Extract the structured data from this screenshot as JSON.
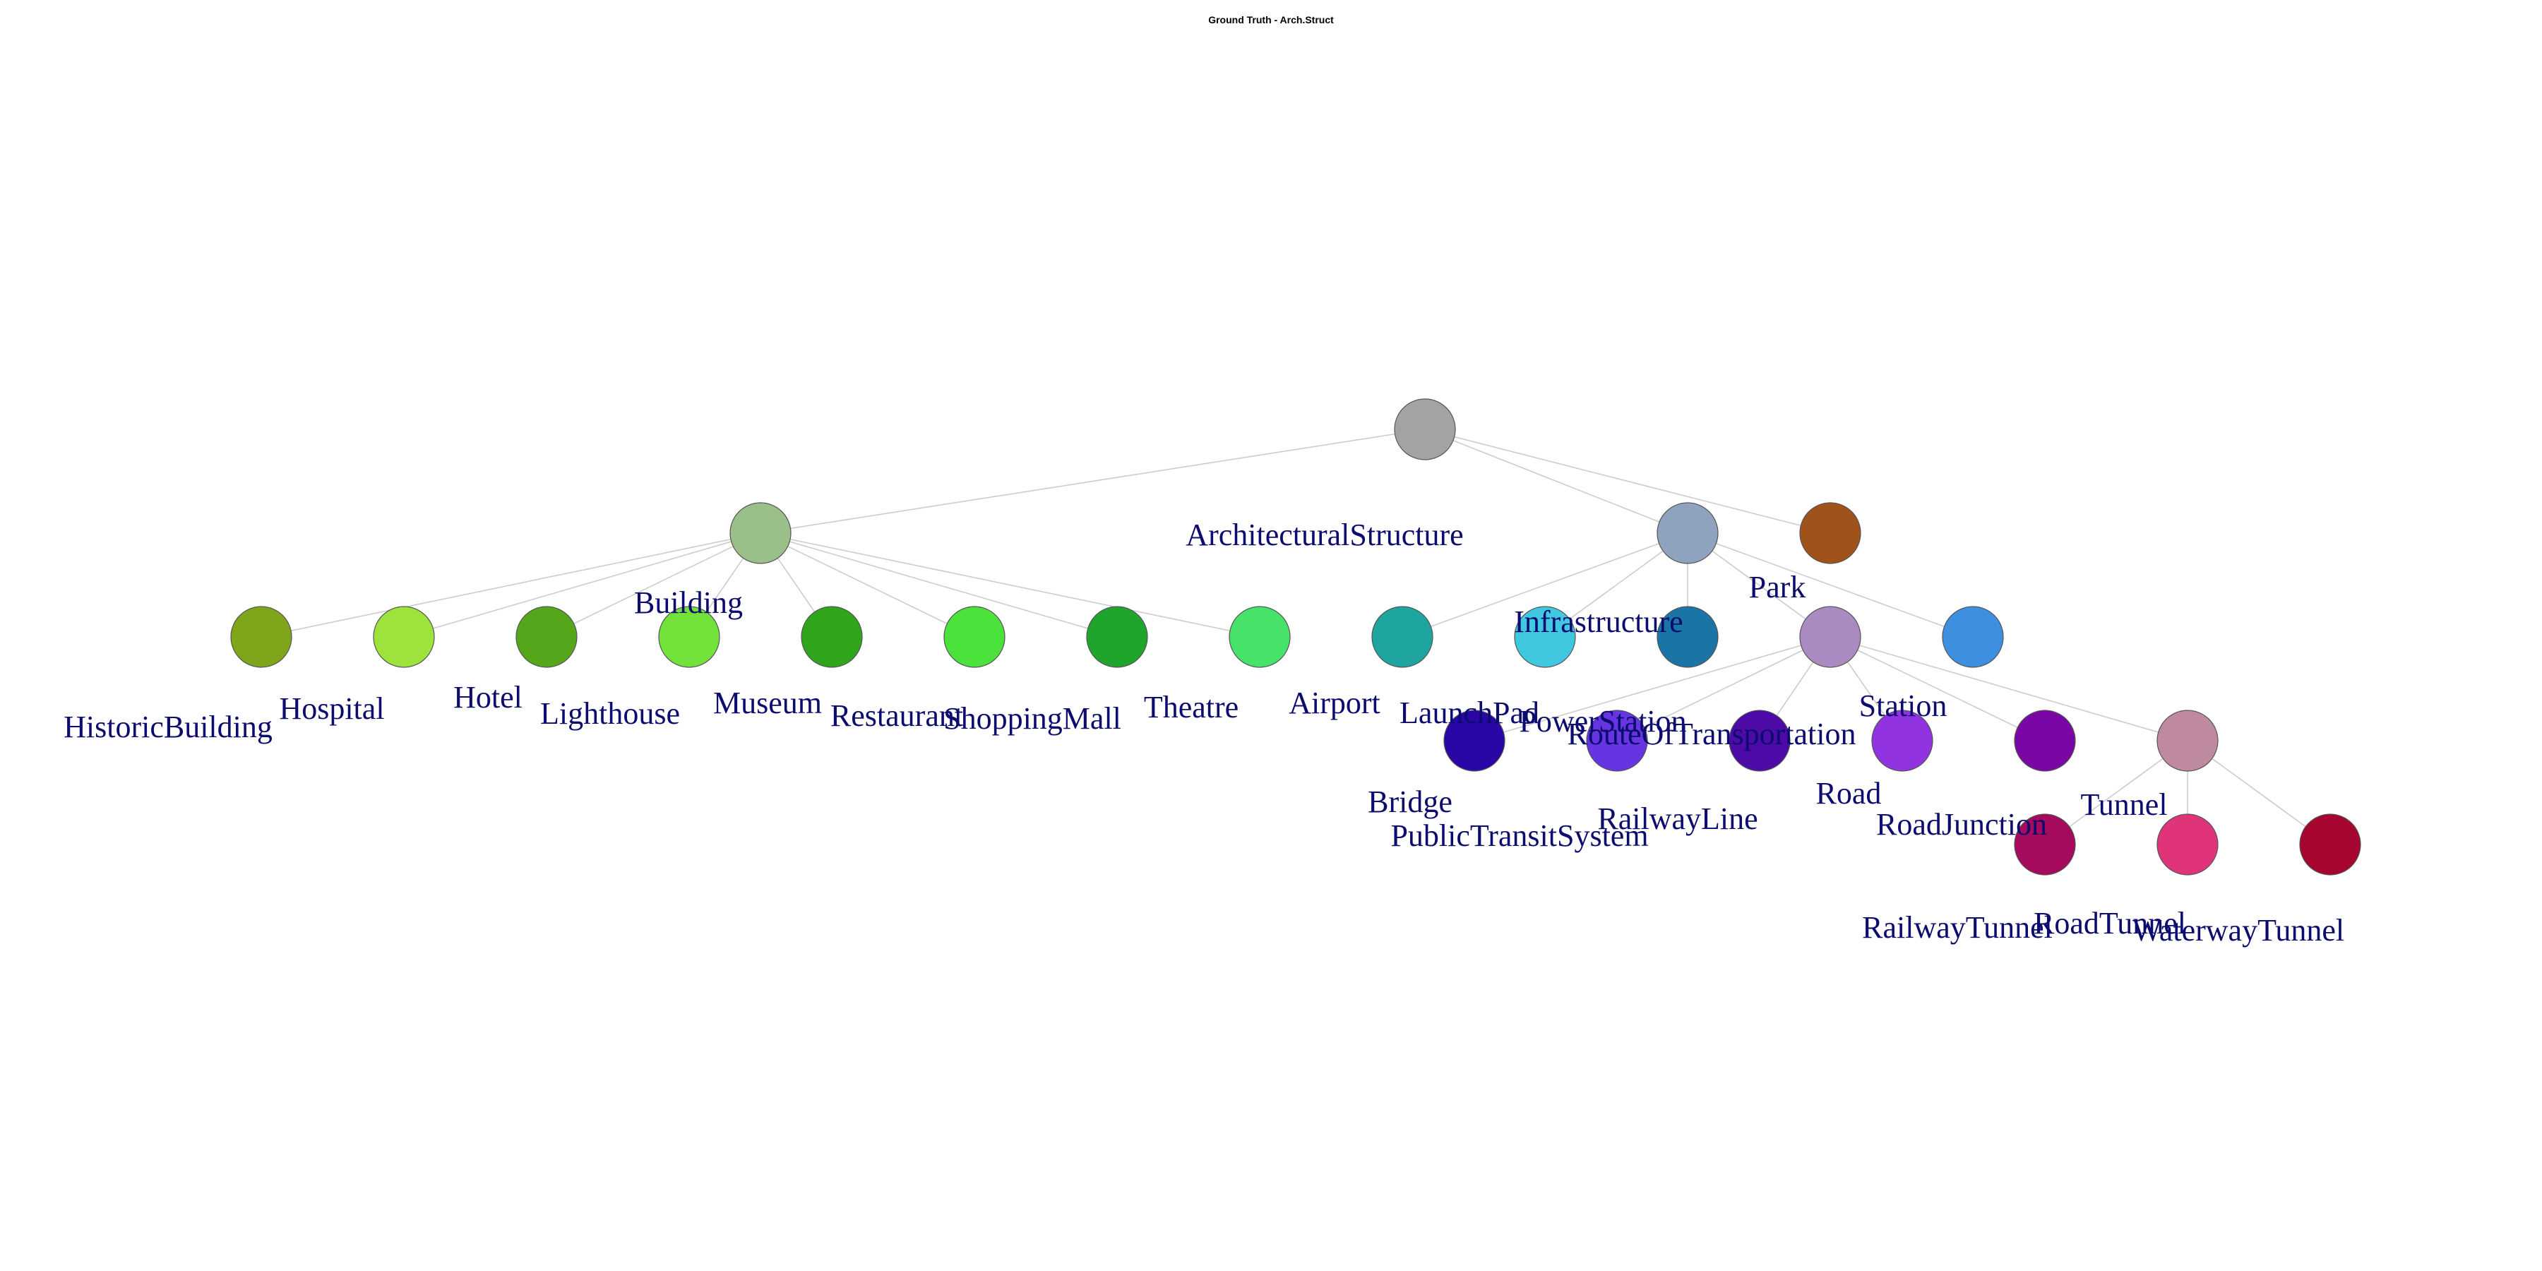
{
  "title": "Ground Truth - Arch.Struct",
  "nodes": [
    {
      "id": "ArchitecturalStructure",
      "label": "ArchitecturalStructure",
      "color": "#a3a3a3",
      "parent": null
    },
    {
      "id": "Building",
      "label": "Building",
      "color": "#9bbf88",
      "parent": "ArchitecturalStructure"
    },
    {
      "id": "Infrastructure",
      "label": "Infrastructure",
      "color": "#8fa3bf",
      "parent": "ArchitecturalStructure"
    },
    {
      "id": "Park",
      "label": "Park",
      "color": "#a0521b",
      "parent": "ArchitecturalStructure"
    },
    {
      "id": "HistoricBuilding",
      "label": "HistoricBuilding",
      "color": "#7fa51b",
      "parent": "Building"
    },
    {
      "id": "Hospital",
      "label": "Hospital",
      "color": "#9ee33b",
      "parent": "Building"
    },
    {
      "id": "Hotel",
      "label": "Hotel",
      "color": "#55a61b",
      "parent": "Building"
    },
    {
      "id": "Lighthouse",
      "label": "Lighthouse",
      "color": "#73e23b",
      "parent": "Building"
    },
    {
      "id": "Museum",
      "label": "Museum",
      "color": "#30a51b",
      "parent": "Building"
    },
    {
      "id": "Restaurant",
      "label": "Restaurant",
      "color": "#4be23b",
      "parent": "Building"
    },
    {
      "id": "ShoppingMall",
      "label": "ShoppingMall",
      "color": "#1fa52b",
      "parent": "Building"
    },
    {
      "id": "Theatre",
      "label": "Theatre",
      "color": "#47e26a",
      "parent": "Building"
    },
    {
      "id": "Airport",
      "label": "Airport",
      "color": "#1fa5a0",
      "parent": "Infrastructure"
    },
    {
      "id": "LaunchPad",
      "label": "LaunchPad",
      "color": "#40c8e0",
      "parent": "Infrastructure"
    },
    {
      "id": "PowerStation",
      "label": "PowerStation",
      "color": "#1a75a6",
      "parent": "Infrastructure"
    },
    {
      "id": "RouteOfTransportation",
      "label": "RouteOfTransportation",
      "color": "#a98ac1",
      "parent": "Infrastructure"
    },
    {
      "id": "Station",
      "label": "Station",
      "color": "#3f8fe0",
      "parent": "Infrastructure"
    },
    {
      "id": "Bridge",
      "label": "Bridge",
      "color": "#2a06a6",
      "parent": "RouteOfTransportation"
    },
    {
      "id": "PublicTransitSystem",
      "label": "PublicTransitSystem",
      "color": "#6634e0",
      "parent": "RouteOfTransportation"
    },
    {
      "id": "RailwayLine",
      "label": "RailwayLine",
      "color": "#4d0aa6",
      "parent": "RouteOfTransportation"
    },
    {
      "id": "Road",
      "label": "Road",
      "color": "#9133e0",
      "parent": "RouteOfTransportation"
    },
    {
      "id": "RoadJunction",
      "label": "RoadJunction",
      "color": "#7a06a6",
      "parent": "RouteOfTransportation"
    },
    {
      "id": "Tunnel",
      "label": "Tunnel",
      "color": "#bf8a9f",
      "parent": "RouteOfTransportation"
    },
    {
      "id": "RailwayTunnel",
      "label": "RailwayTunnel",
      "color": "#a60a5c",
      "parent": "Tunnel"
    },
    {
      "id": "RoadTunnel",
      "label": "RoadTunnel",
      "color": "#e0347a",
      "parent": "Tunnel"
    },
    {
      "id": "WaterwayTunnel",
      "label": "WaterwayTunnel",
      "color": "#a6052f",
      "parent": "Tunnel"
    }
  ]
}
